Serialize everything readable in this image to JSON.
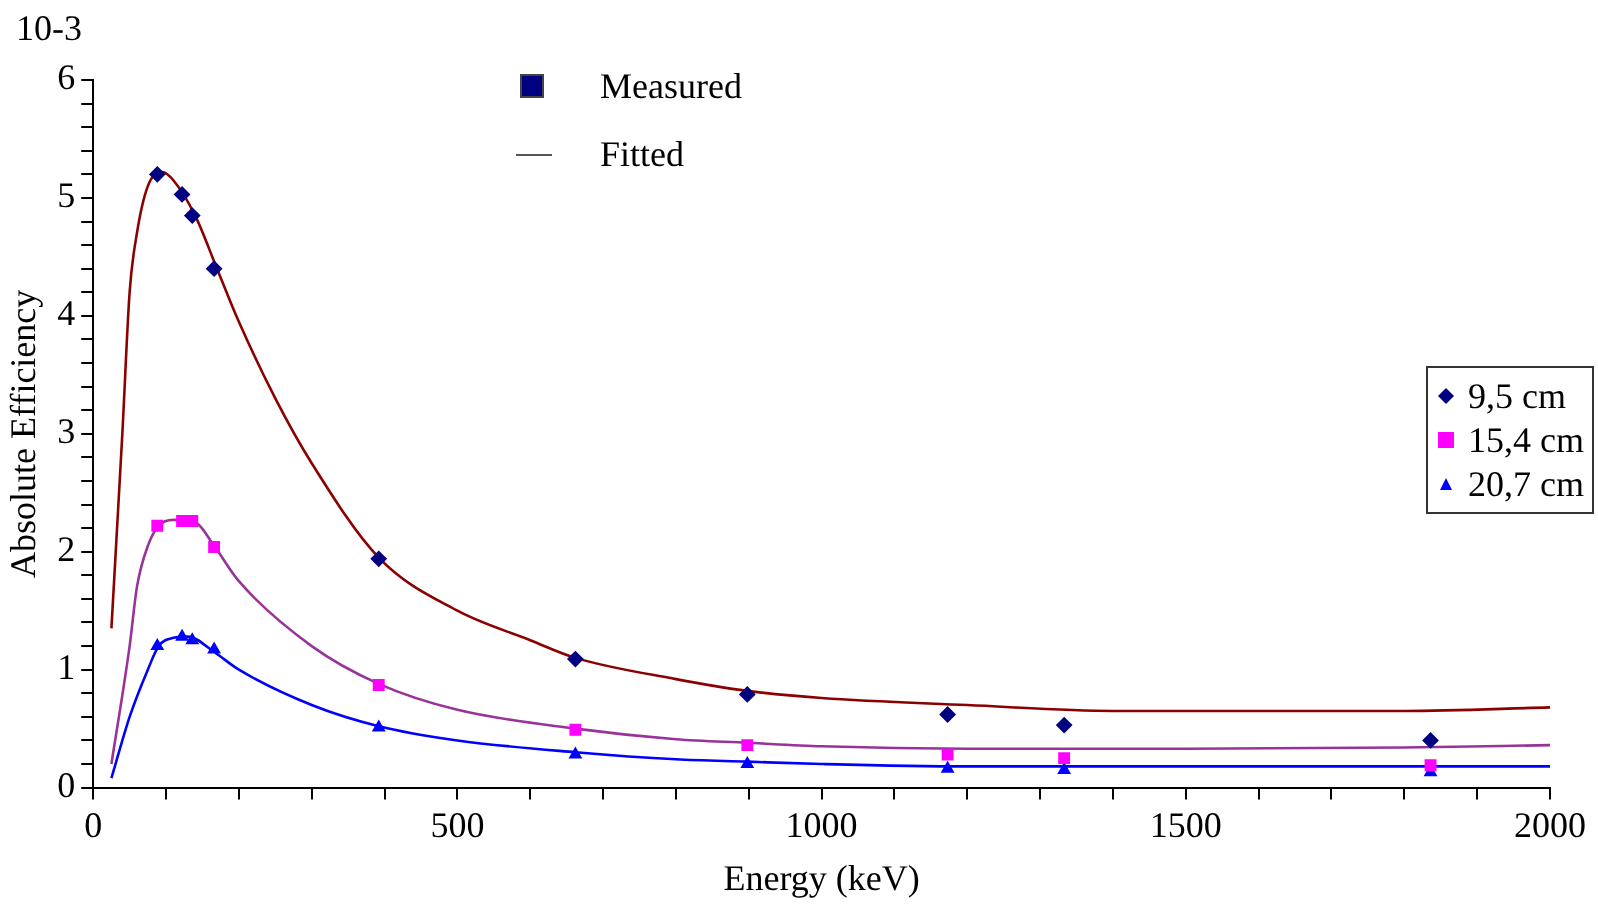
{
  "chart_data": {
    "type": "scatter",
    "xlabel": "Energy (keV)",
    "ylabel": "Absolute Efficiency",
    "annotations": [
      "10-3",
      "Measured",
      "Fitted"
    ],
    "x": [
      88,
      122,
      136,
      166,
      392,
      662,
      898,
      1173,
      1333,
      1836
    ],
    "xlim": [
      0,
      2000
    ],
    "xticks": [
      0,
      {
        "value": 100,
        "label": null
      },
      {
        "value": 200,
        "label": null
      },
      {
        "value": 300,
        "label": null
      },
      {
        "value": 400,
        "label": null
      },
      500,
      {
        "value": 600,
        "label": null
      },
      {
        "value": 700,
        "label": null
      },
      {
        "value": 800,
        "label": null
      },
      {
        "value": 900,
        "label": null
      },
      1000,
      {
        "value": 1100,
        "label": null
      },
      {
        "value": 1200,
        "label": null
      },
      {
        "value": 1300,
        "label": null
      },
      {
        "value": 1400,
        "label": null
      },
      1500,
      {
        "value": 1600,
        "label": null
      },
      {
        "value": 1700,
        "label": null
      },
      {
        "value": 1800,
        "label": null
      },
      {
        "value": 1900,
        "label": null
      },
      2000
    ],
    "ylim": [
      0,
      6
    ],
    "yticks": [
      0,
      {
        "value": 0.2,
        "label": null
      },
      {
        "value": 0.4,
        "label": null
      },
      {
        "value": 0.6,
        "label": null
      },
      {
        "value": 0.8,
        "label": null
      },
      1,
      {
        "value": 1.2,
        "label": null
      },
      {
        "value": 1.4,
        "label": null
      },
      {
        "value": 1.6,
        "label": null
      },
      {
        "value": 1.8,
        "label": null
      },
      2,
      {
        "value": 2.2,
        "label": null
      },
      {
        "value": 2.4,
        "label": null
      },
      {
        "value": 2.6,
        "label": null
      },
      {
        "value": 2.8,
        "label": null
      },
      3,
      {
        "value": 3.2,
        "label": null
      },
      {
        "value": 3.4,
        "label": null
      },
      {
        "value": 3.6,
        "label": null
      },
      {
        "value": 3.8,
        "label": null
      },
      4,
      {
        "value": 4.2,
        "label": null
      },
      {
        "value": 4.4,
        "label": null
      },
      {
        "value": 4.6,
        "label": null
      },
      {
        "value": 4.8,
        "label": null
      },
      5,
      {
        "value": 5.2,
        "label": null
      },
      {
        "value": 5.4,
        "label": null
      },
      {
        "value": 5.6,
        "label": null
      },
      {
        "value": 5.8,
        "label": null
      },
      6
    ],
    "grid": false,
    "legend": "right",
    "series": [
      {
        "type": "line",
        "color": "#8b0000",
        "marker": "none",
        "x": [
          25,
          40,
          50,
          60,
          75,
          95,
          110,
          140,
          170,
          200,
          250,
          300,
          392,
          500,
          600,
          662,
          800,
          898,
          1000,
          1200,
          1400,
          1600,
          1800,
          2000
        ],
        "values": [
          1.35,
          3.0,
          4.2,
          4.7,
          5.1,
          5.22,
          5.15,
          4.85,
          4.4,
          3.95,
          3.3,
          2.75,
          1.95,
          1.5,
          1.25,
          1.1,
          0.92,
          0.82,
          0.76,
          0.7,
          0.65,
          0.65,
          0.65,
          0.68
        ]
      },
      {
        "type": "line",
        "color": "#993399",
        "marker": "none",
        "x": [
          25,
          50,
          60,
          75,
          90,
          110,
          140,
          166,
          200,
          300,
          392,
          500,
          662,
          800,
          898,
          1000,
          1200,
          1500,
          1800,
          2000
        ],
        "values": [
          0.2,
          1.2,
          1.7,
          2.05,
          2.22,
          2.27,
          2.25,
          2.05,
          1.75,
          1.2,
          0.88,
          0.66,
          0.5,
          0.41,
          0.38,
          0.35,
          0.33,
          0.33,
          0.34,
          0.36
        ]
      },
      {
        "type": "line",
        "color": "#0000ff",
        "marker": "none",
        "x": [
          25,
          50,
          75,
          90,
          110,
          130,
          166,
          200,
          300,
          392,
          500,
          662,
          800,
          898,
          1000,
          1200,
          1500,
          2000
        ],
        "values": [
          0.08,
          0.6,
          1.0,
          1.2,
          1.27,
          1.28,
          1.15,
          1.0,
          0.7,
          0.52,
          0.4,
          0.3,
          0.24,
          0.22,
          0.2,
          0.18,
          0.18,
          0.18
        ]
      },
      {
        "name": "9,5 cm",
        "type": "scatter",
        "color": "#000080",
        "marker": "diamond",
        "values": [
          5.2,
          5.03,
          4.85,
          4.4,
          1.94,
          1.09,
          0.79,
          0.62,
          0.53,
          0.4
        ]
      },
      {
        "name": "15,4 cm",
        "type": "scatter",
        "color": "#ff00ff",
        "marker": "square",
        "values": [
          2.22,
          2.26,
          2.26,
          2.04,
          0.87,
          0.49,
          0.36,
          0.28,
          0.25,
          0.19
        ]
      },
      {
        "name": "20,7 cm",
        "type": "scatter",
        "color": "#0000ff",
        "marker": "triangle",
        "values": [
          1.2,
          1.28,
          1.25,
          1.17,
          0.51,
          0.28,
          0.2,
          0.16,
          0.15,
          0.13
        ]
      }
    ]
  }
}
